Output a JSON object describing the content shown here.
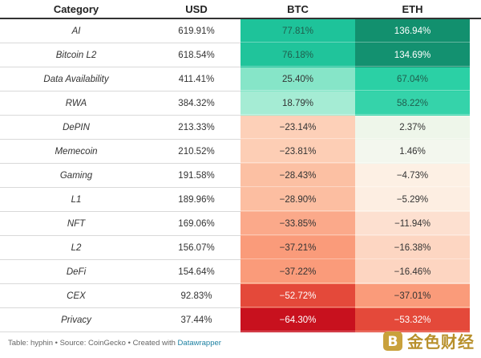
{
  "headers": {
    "category": "Category",
    "usd": "USD",
    "btc": "BTC",
    "eth": "ETH"
  },
  "rows": [
    {
      "category": "AI",
      "usd": "619.91%",
      "btc": "77.81%",
      "eth": "136.94%",
      "btc_color": "#1ec39a",
      "eth_color": "#12906e",
      "btc_text": "#1f5e4d",
      "eth_text": "#ffffff"
    },
    {
      "category": "Bitcoin L2",
      "usd": "618.54%",
      "btc": "76.18%",
      "eth": "134.69%",
      "btc_color": "#20c49b",
      "eth_color": "#139170",
      "btc_text": "#1f5e4d",
      "eth_text": "#ffffff"
    },
    {
      "category": "Data Availability",
      "usd": "411.41%",
      "btc": "25.40%",
      "eth": "67.04%",
      "btc_color": "#86e5c8",
      "eth_color": "#2bd0a5",
      "btc_text": "#333333",
      "eth_text": "#1f5e4d"
    },
    {
      "category": "RWA",
      "usd": "384.32%",
      "btc": "18.79%",
      "eth": "58.22%",
      "btc_color": "#a5ecd4",
      "eth_color": "#35d3aa",
      "btc_text": "#333333",
      "eth_text": "#1f5e4d"
    },
    {
      "category": "DePIN",
      "usd": "213.33%",
      "btc": "−23.14%",
      "eth": "2.37%",
      "btc_color": "#fdd0b8",
      "eth_color": "#eef6ea",
      "btc_text": "#333333",
      "eth_text": "#333333"
    },
    {
      "category": "Memecoin",
      "usd": "210.52%",
      "btc": "−23.81%",
      "eth": "1.46%",
      "btc_color": "#fdceb5",
      "eth_color": "#f3f7ee",
      "btc_text": "#333333",
      "eth_text": "#333333"
    },
    {
      "category": "Gaming",
      "usd": "191.58%",
      "btc": "−28.43%",
      "eth": "−4.73%",
      "btc_color": "#fcc0a3",
      "eth_color": "#fdf0e4",
      "btc_text": "#333333",
      "eth_text": "#333333"
    },
    {
      "category": "L1",
      "usd": "189.96%",
      "btc": "−28.90%",
      "eth": "−5.29%",
      "btc_color": "#fcbea1",
      "eth_color": "#fdeee2",
      "btc_text": "#333333",
      "eth_text": "#333333"
    },
    {
      "category": "NFT",
      "usd": "169.06%",
      "btc": "−33.85%",
      "eth": "−11.94%",
      "btc_color": "#fba98a",
      "eth_color": "#fde0d0",
      "btc_text": "#333333",
      "eth_text": "#333333"
    },
    {
      "category": "L2",
      "usd": "156.07%",
      "btc": "−37.21%",
      "eth": "−16.38%",
      "btc_color": "#fa9b7a",
      "eth_color": "#fdd6c2",
      "btc_text": "#333333",
      "eth_text": "#333333"
    },
    {
      "category": "DeFi",
      "usd": "154.64%",
      "btc": "−37.22%",
      "eth": "−16.46%",
      "btc_color": "#fa9b7a",
      "eth_color": "#fdd5c1",
      "btc_text": "#333333",
      "eth_text": "#333333"
    },
    {
      "category": "CEX",
      "usd": "92.83%",
      "btc": "−52.72%",
      "eth": "−37.01%",
      "btc_color": "#e4493a",
      "eth_color": "#fa9b7a",
      "btc_text": "#ffffff",
      "eth_text": "#333333"
    },
    {
      "category": "Privacy",
      "usd": "37.44%",
      "btc": "−64.30%",
      "eth": "−53.32%",
      "btc_color": "#c8111e",
      "eth_color": "#e4493a",
      "btc_text": "#ffffff",
      "eth_text": "#ffffff"
    }
  ],
  "footer": {
    "text": "Table: hyphin • Source: CoinGecko • Created with ",
    "link": "Datawrapper"
  },
  "watermark": {
    "text": "金色财经",
    "icon": "bitcoin-logo-icon"
  }
}
